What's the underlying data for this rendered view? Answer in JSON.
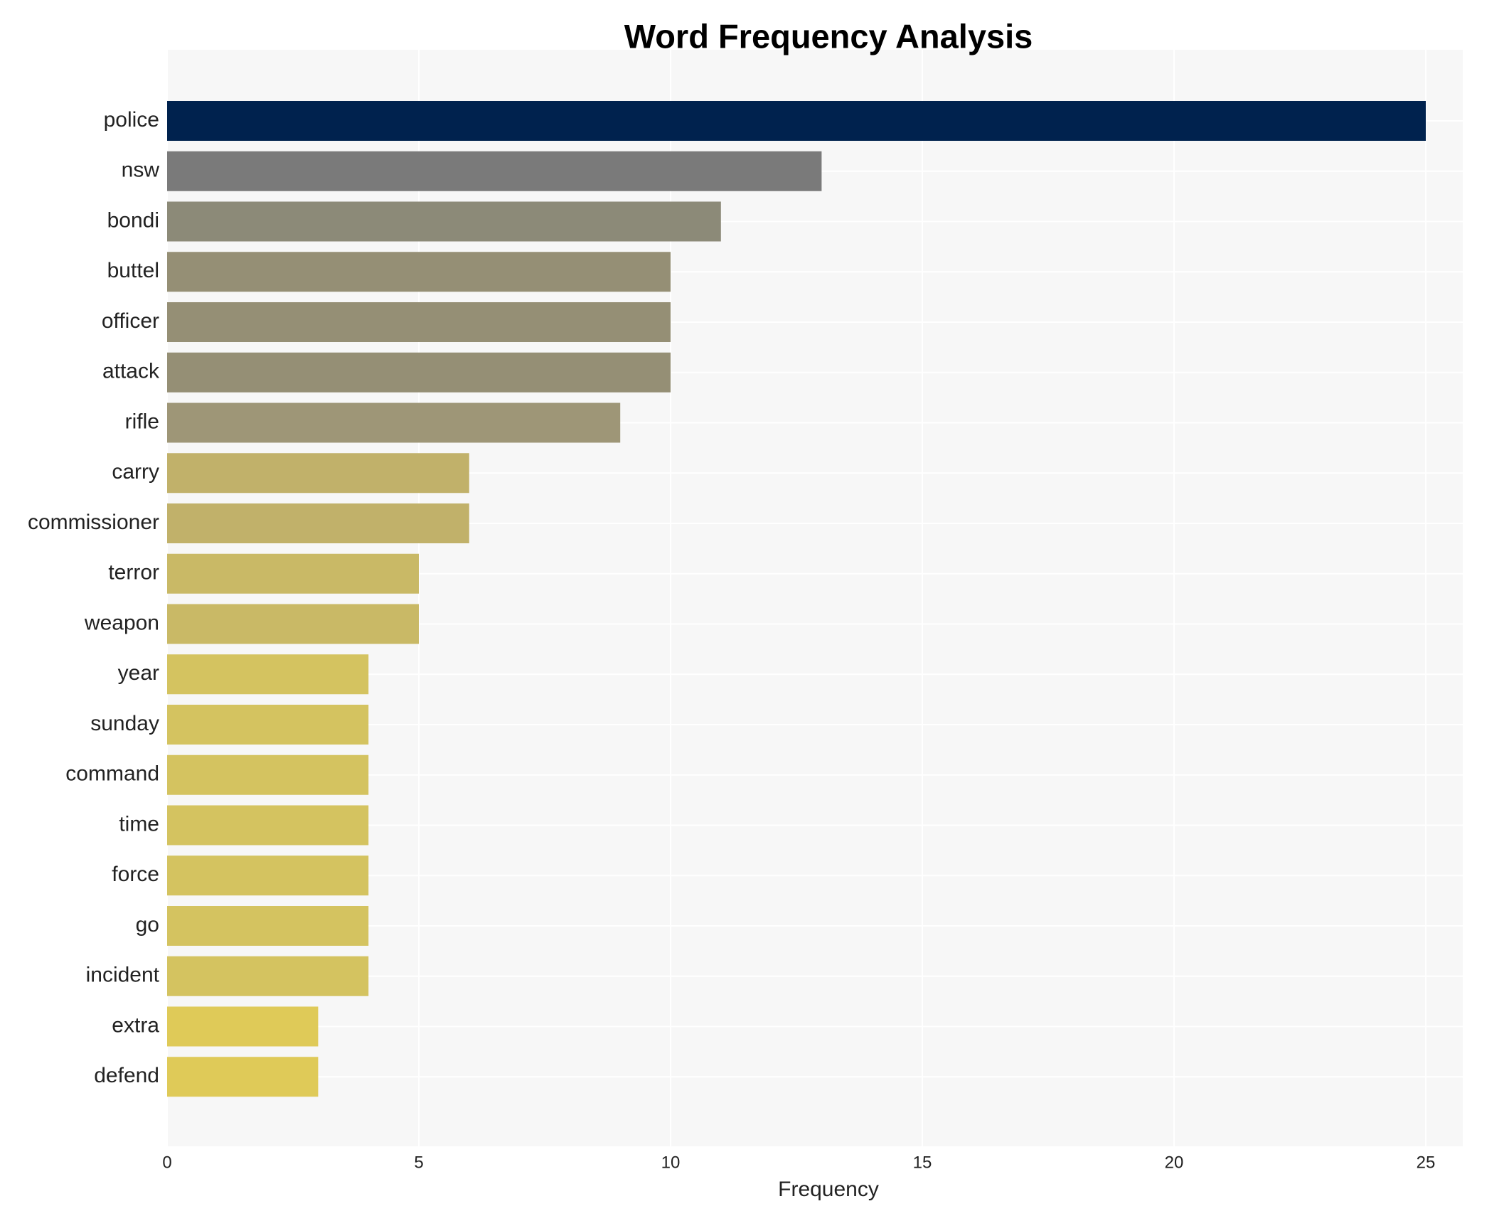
{
  "chart_data": {
    "type": "bar",
    "orientation": "horizontal",
    "title": "Word Frequency Analysis",
    "xlabel": "Frequency",
    "ylabel": "",
    "xlim": [
      0,
      26.2
    ],
    "xticks": [
      0,
      5,
      10,
      15,
      20,
      25
    ],
    "grid": true,
    "categories": [
      "police",
      "nsw",
      "bondi",
      "buttel",
      "officer",
      "attack",
      "rifle",
      "carry",
      "commissioner",
      "terror",
      "weapon",
      "year",
      "sunday",
      "command",
      "time",
      "force",
      "go",
      "incident",
      "extra",
      "defend"
    ],
    "values": [
      25,
      13,
      11,
      10,
      10,
      10,
      9,
      6,
      6,
      5,
      5,
      4,
      4,
      4,
      4,
      4,
      4,
      4,
      3,
      3
    ],
    "colors": [
      "#00224e",
      "#7a7a7a",
      "#8c8a78",
      "#958f75",
      "#958f75",
      "#958f75",
      "#9e9677",
      "#c1b16a",
      "#c1b16a",
      "#c9b966",
      "#c9b966",
      "#d4c360",
      "#d4c360",
      "#d4c360",
      "#d4c360",
      "#d4c360",
      "#d4c360",
      "#d4c360",
      "#dfca58",
      "#dfca58"
    ],
    "background": "#f7f7f7"
  }
}
